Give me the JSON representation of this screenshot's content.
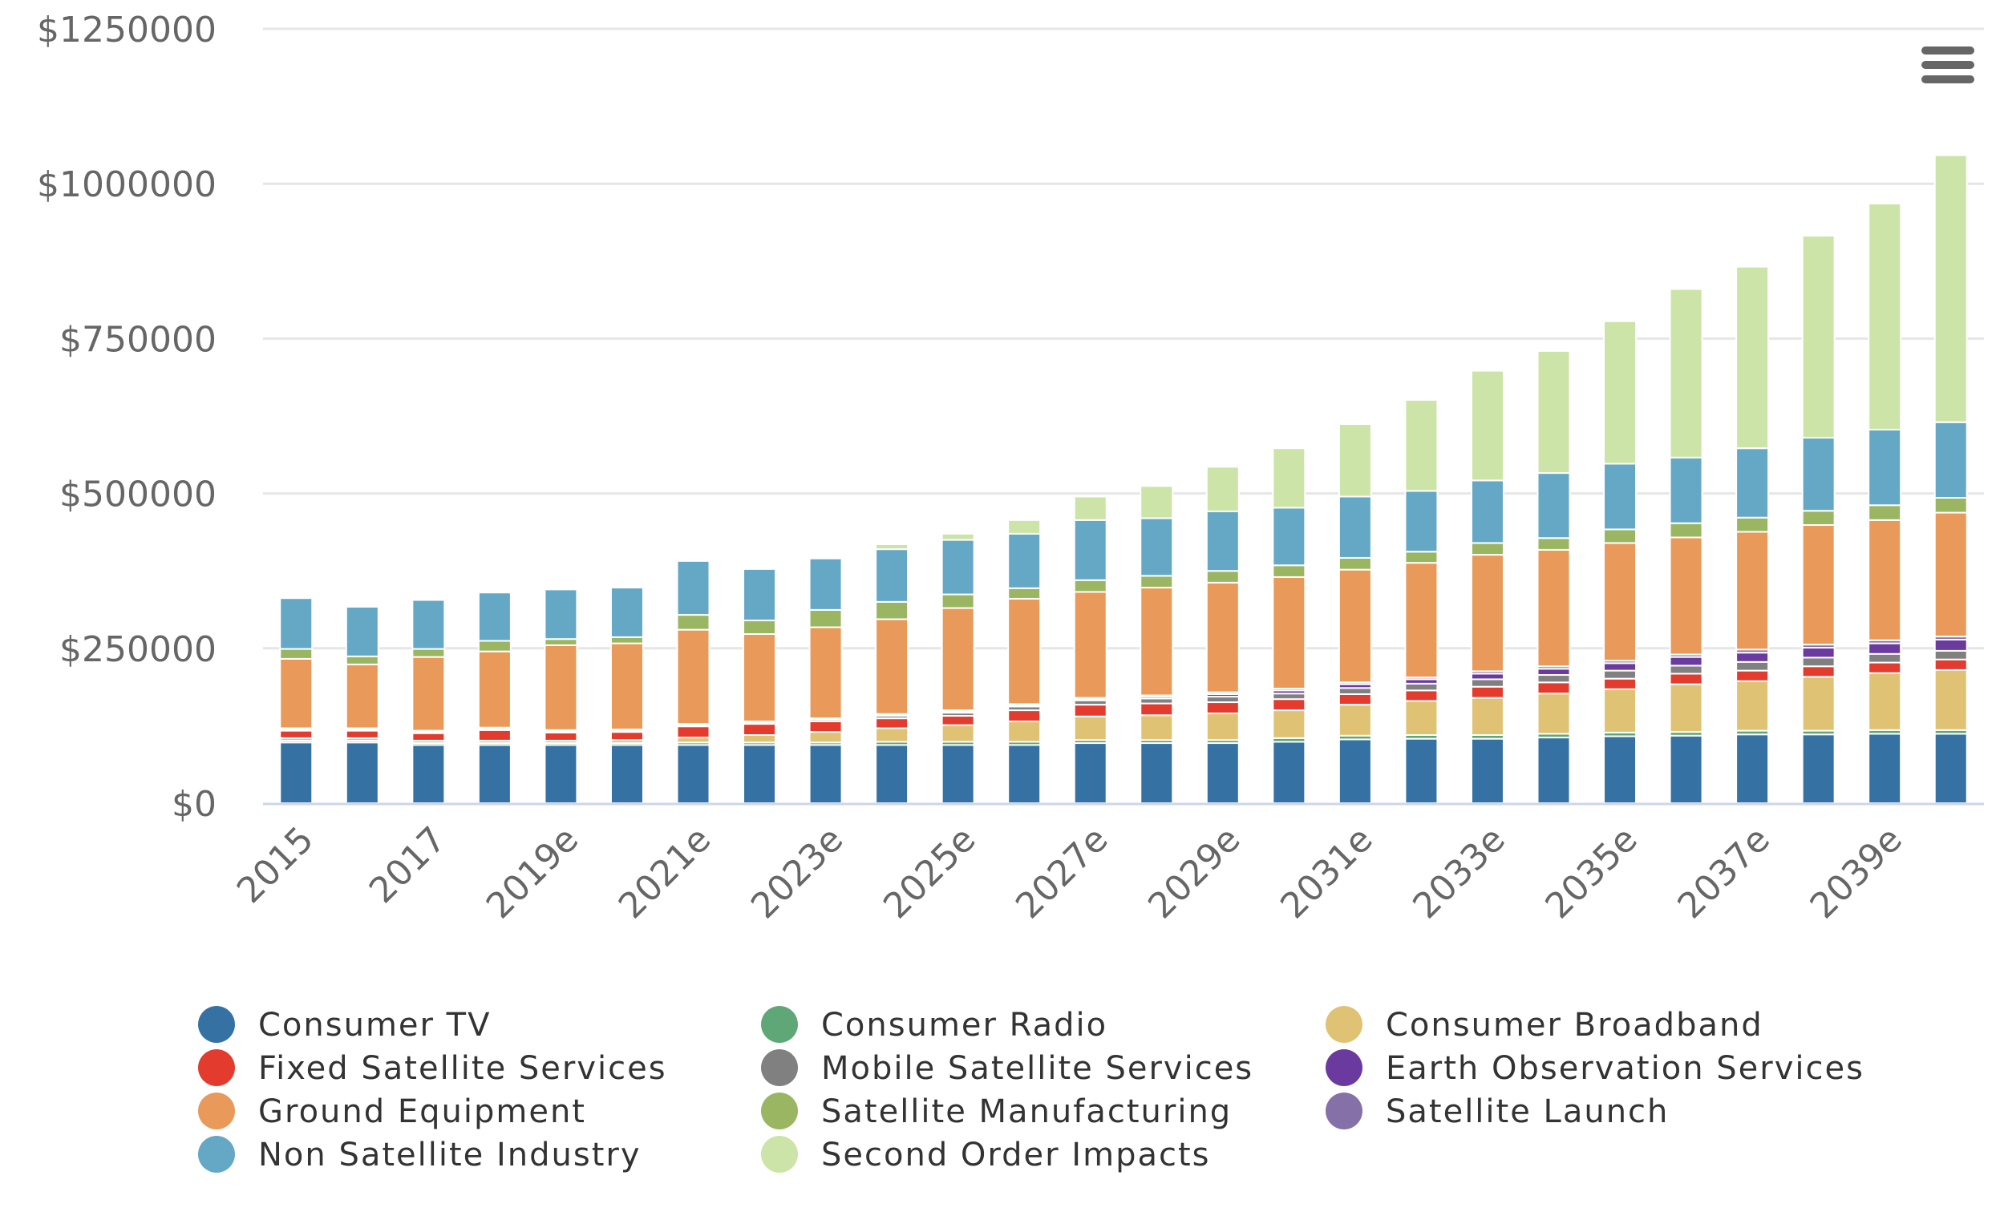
{
  "chart_data": {
    "type": "bar",
    "stacked": true,
    "title": "",
    "xlabel": "",
    "ylabel": "",
    "ylim": [
      0,
      1250000
    ],
    "y_ticks": [
      "$0",
      "$250000",
      "$500000",
      "$750000",
      "$1000000",
      "$1250000"
    ],
    "y_tick_values": [
      0,
      250000,
      500000,
      750000,
      1000000,
      1250000
    ],
    "grid": true,
    "legend_position": "bottom",
    "categories": [
      "2015",
      "2016",
      "2017",
      "2018",
      "2019e",
      "2020e",
      "2021e",
      "2022e",
      "2023e",
      "2024e",
      "2025e",
      "2026e",
      "2027e",
      "2028e",
      "2029e",
      "2030e",
      "2031e",
      "2032e",
      "2033e",
      "2034e",
      "2035e",
      "2036e",
      "2037e",
      "2038e",
      "2039e",
      "2040e"
    ],
    "x_tick_labels_shown": [
      "2015",
      "2017",
      "2019e",
      "2021e",
      "2023e",
      "2025e",
      "2027e",
      "2029e",
      "2031e",
      "2033e",
      "2035e",
      "2037e",
      "2039e"
    ],
    "series": [
      {
        "name": "Consumer TV",
        "color": "#3571a3",
        "values": [
          98000,
          98000,
          94000,
          94000,
          94000,
          94000,
          94000,
          94000,
          94000,
          94000,
          94000,
          94000,
          97000,
          97000,
          97000,
          99000,
          103000,
          104000,
          104000,
          106000,
          108000,
          109000,
          111000,
          111000,
          112000,
          112000
        ]
      },
      {
        "name": "Consumer Radio",
        "color": "#5fa777",
        "values": [
          3000,
          3000,
          3000,
          3000,
          3000,
          3000,
          4000,
          4000,
          4000,
          5000,
          5000,
          5000,
          5000,
          5000,
          5000,
          6000,
          6000,
          6000,
          6000,
          6000,
          6000,
          6000,
          6000,
          6000,
          6000,
          6000
        ]
      },
      {
        "name": "Consumer Broadband",
        "color": "#e0c274",
        "values": [
          4000,
          4000,
          4000,
          4000,
          4000,
          5000,
          8000,
          12000,
          17000,
          22000,
          27000,
          33000,
          38000,
          40000,
          43000,
          45000,
          50000,
          55000,
          60000,
          65000,
          70000,
          77000,
          80000,
          87000,
          92000,
          97000
        ]
      },
      {
        "name": "Fixed Satellite Services",
        "color": "#e33b2d",
        "values": [
          12000,
          12000,
          12000,
          17000,
          13000,
          13000,
          18000,
          18000,
          17000,
          16000,
          15000,
          18000,
          19000,
          19000,
          18000,
          18000,
          17000,
          17000,
          18000,
          18000,
          17000,
          17000,
          17000,
          17000,
          17000,
          17000
        ]
      },
      {
        "name": "Mobile Satellite Services",
        "color": "#808080",
        "values": [
          2000,
          2000,
          2000,
          2000,
          2000,
          2000,
          2000,
          2000,
          3000,
          4000,
          5000,
          6000,
          7000,
          8000,
          9000,
          9000,
          10000,
          11000,
          12000,
          12000,
          13000,
          13000,
          14000,
          14000,
          14000,
          14000
        ]
      },
      {
        "name": "Earth Observation Services",
        "color": "#6a3a9e",
        "values": [
          1000,
          1000,
          1000,
          1000,
          1000,
          1000,
          1000,
          1000,
          1000,
          1000,
          2000,
          2000,
          2000,
          3000,
          4000,
          5000,
          6000,
          7000,
          9000,
          10000,
          12000,
          14000,
          15000,
          16000,
          17000,
          18000
        ]
      },
      {
        "name": "Satellite Launch",
        "color": "#8670a8",
        "values": [
          1000,
          1000,
          1000,
          1000,
          1000,
          1000,
          1000,
          1000,
          1000,
          2000,
          2000,
          2000,
          2000,
          2000,
          3000,
          3000,
          3000,
          3000,
          4000,
          4000,
          4000,
          4000,
          5000,
          5000,
          5000,
          5000
        ]
      },
      {
        "name": "Ground Equipment",
        "color": "#e9995a",
        "values": [
          112000,
          103000,
          119000,
          123000,
          137000,
          139000,
          152000,
          141000,
          147000,
          153000,
          165000,
          170000,
          171000,
          174000,
          177000,
          180000,
          182000,
          185000,
          188000,
          188000,
          190000,
          189000,
          190000,
          193000,
          194000,
          200000
        ]
      },
      {
        "name": "Satellite Manufacturing",
        "color": "#9bb662",
        "values": [
          16000,
          13000,
          13000,
          17000,
          10000,
          10000,
          24000,
          22000,
          28000,
          28000,
          22000,
          17000,
          19000,
          19000,
          19000,
          19000,
          19000,
          18000,
          19000,
          19000,
          22000,
          23000,
          23000,
          23000,
          24000,
          24000
        ]
      },
      {
        "name": "Non Satellite Industry",
        "color": "#65a8c5",
        "values": [
          82000,
          80000,
          79000,
          78000,
          80000,
          80000,
          87000,
          83000,
          83000,
          85000,
          88000,
          88000,
          97000,
          93000,
          96000,
          93000,
          99000,
          98000,
          101000,
          105000,
          106000,
          106000,
          112000,
          118000,
          122000,
          122000
        ]
      },
      {
        "name": "Second Order Impacts",
        "color": "#cce4a7",
        "values": [
          0,
          0,
          0,
          0,
          0,
          0,
          0,
          0,
          0,
          8000,
          10000,
          22000,
          38000,
          52000,
          72000,
          96000,
          117000,
          147000,
          177000,
          197000,
          230000,
          272000,
          293000,
          326000,
          365000,
          431000
        ]
      }
    ]
  },
  "legend": [
    {
      "label": "Consumer TV",
      "color": "#3571a3"
    },
    {
      "label": "Consumer Radio",
      "color": "#5fa777"
    },
    {
      "label": "Consumer Broadband",
      "color": "#e0c274"
    },
    {
      "label": "Fixed Satellite Services",
      "color": "#e33b2d"
    },
    {
      "label": "Mobile Satellite Services",
      "color": "#808080"
    },
    {
      "label": "Earth Observation Services",
      "color": "#6a3a9e"
    },
    {
      "label": "Ground Equipment",
      "color": "#e9995a"
    },
    {
      "label": "Satellite Manufacturing",
      "color": "#9bb662"
    },
    {
      "label": "Satellite Launch",
      "color": "#8670a8"
    },
    {
      "label": "Non Satellite Industry",
      "color": "#65a8c5"
    },
    {
      "label": "Second Order Impacts",
      "color": "#cce4a7"
    }
  ],
  "menu": {
    "icon": "hamburger-menu-icon"
  }
}
